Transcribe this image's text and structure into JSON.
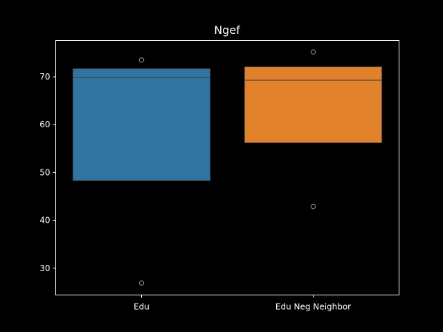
{
  "chart_data": {
    "type": "box",
    "title": "Ngef",
    "xlabel": "",
    "ylabel": "",
    "categories": [
      "Edu",
      "Edu Neg Neighbor"
    ],
    "ylim": [
      24.4,
      77.6
    ],
    "yticks": [
      30,
      40,
      50,
      60,
      70
    ],
    "grid": false,
    "boxes": [
      {
        "category": "Edu",
        "color": "#3274a1",
        "q1": 48.3,
        "median": 69.8,
        "q3": 71.7,
        "whisker_low": 48.3,
        "whisker_high": 71.7,
        "outliers": [
          73.5,
          26.9
        ]
      },
      {
        "category": "Edu Neg Neighbor",
        "color": "#e1812c",
        "q1": 56.2,
        "median": 69.3,
        "q3": 72.1,
        "whisker_low": 56.2,
        "whisker_high": 72.1,
        "outliers": [
          75.2,
          42.9
        ]
      }
    ],
    "colors": {
      "background": "#000000",
      "axes": "#ffffff",
      "median_line": "#3d3d3d",
      "outlier_edge": "#7f7f7f"
    }
  }
}
